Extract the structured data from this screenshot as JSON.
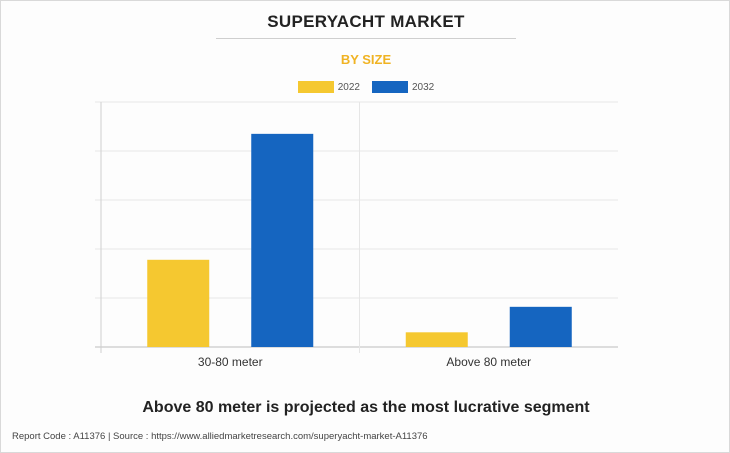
{
  "colors": {
    "series_2022": "#f5c830",
    "series_2032": "#1565c0",
    "subtitle": "#f0b323",
    "grid": "#e6e6e6"
  },
  "header": {
    "title": "SUPERYACHT MARKET",
    "subtitle": "BY SIZE"
  },
  "chart_data": {
    "type": "bar",
    "title": "SUPERYACHT MARKET",
    "subtitle": "BY SIZE",
    "categories": [
      "30-80 meter",
      "Above 80 meter"
    ],
    "series": [
      {
        "name": "2022",
        "values": [
          17.8,
          3.0
        ]
      },
      {
        "name": "2032",
        "values": [
          43.5,
          8.2
        ]
      }
    ],
    "ylim": [
      0,
      50
    ],
    "xlabel": "",
    "ylabel": "",
    "grid": true,
    "legend_position": "top-center",
    "y_tick_labels_visible": false
  },
  "caption": "Above 80 meter is projected as the most lucrative segment",
  "footer": "Report Code : A11376  |  Source : https://www.alliedmarketresearch.com/superyacht-market-A11376"
}
